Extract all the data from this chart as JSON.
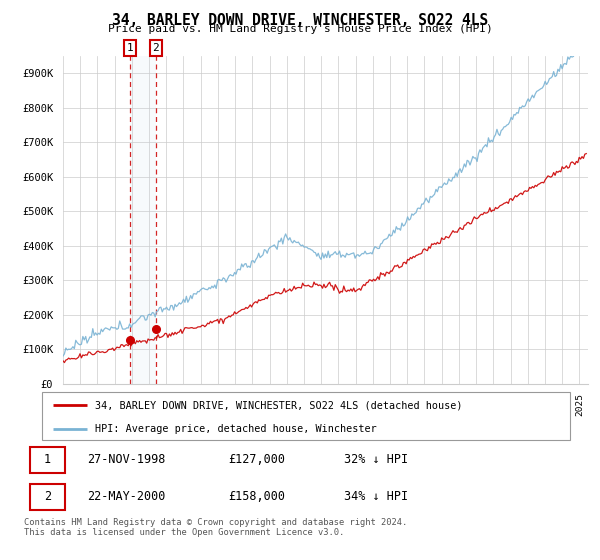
{
  "title": "34, BARLEY DOWN DRIVE, WINCHESTER, SO22 4LS",
  "subtitle": "Price paid vs. HM Land Registry's House Price Index (HPI)",
  "ylabel_ticks": [
    "£0",
    "£100K",
    "£200K",
    "£300K",
    "£400K",
    "£500K",
    "£600K",
    "£700K",
    "£800K",
    "£900K"
  ],
  "ytick_values": [
    0,
    100000,
    200000,
    300000,
    400000,
    500000,
    600000,
    700000,
    800000,
    900000
  ],
  "ylim": [
    0,
    950000
  ],
  "xlim_start": 1995.0,
  "xlim_end": 2025.5,
  "hpi_color": "#7ab3d4",
  "price_color": "#cc0000",
  "transaction1_date": 1998.91,
  "transaction1_price": 127000,
  "transaction2_date": 2000.39,
  "transaction2_price": 158000,
  "legend_label_price": "34, BARLEY DOWN DRIVE, WINCHESTER, SO22 4LS (detached house)",
  "legend_label_hpi": "HPI: Average price, detached house, Winchester",
  "table_row1": [
    "1",
    "27-NOV-1998",
    "£127,000",
    "32% ↓ HPI"
  ],
  "table_row2": [
    "2",
    "22-MAY-2000",
    "£158,000",
    "34% ↓ HPI"
  ],
  "footer": "Contains HM Land Registry data © Crown copyright and database right 2024.\nThis data is licensed under the Open Government Licence v3.0.",
  "shade_x1": 1998.91,
  "shade_x2": 2000.39
}
